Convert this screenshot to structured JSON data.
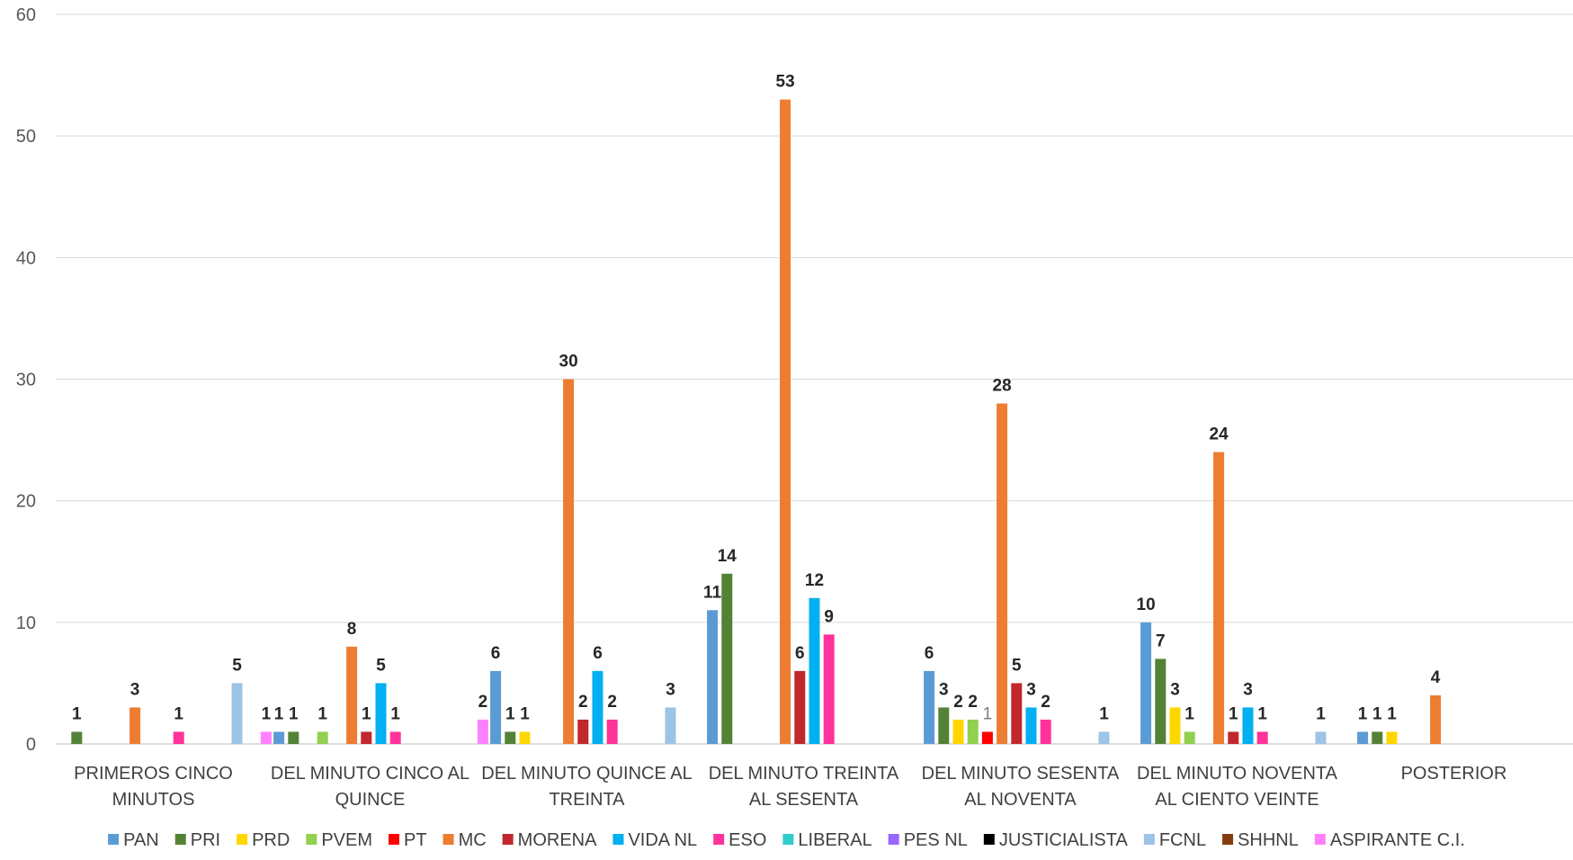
{
  "chart_data": {
    "type": "bar",
    "title": "",
    "xlabel": "",
    "ylabel": "",
    "ylim": [
      0,
      60
    ],
    "yticks": [
      "0",
      "10",
      "20",
      "30",
      "40",
      "50",
      "60"
    ],
    "grid": true,
    "legend_position": "bottom",
    "categories": [
      [
        "PRIMEROS CINCO",
        "MINUTOS"
      ],
      [
        "DEL MINUTO CINCO AL",
        "QUINCE"
      ],
      [
        "DEL MINUTO QUINCE AL",
        "TREINTA"
      ],
      [
        "DEL MINUTO TREINTA",
        "AL SESENTA"
      ],
      [
        "DEL MINUTO SESENTA",
        "AL NOVENTA"
      ],
      [
        "DEL MINUTO NOVENTA",
        "AL CIENTO VEINTE"
      ],
      [
        "POSTERIOR"
      ]
    ],
    "series": [
      {
        "name": "PAN",
        "color": "#5b9bd5",
        "values": [
          null,
          1,
          6,
          11,
          6,
          10,
          1
        ]
      },
      {
        "name": "PRI",
        "color": "#548235",
        "values": [
          1,
          1,
          1,
          14,
          3,
          7,
          1
        ]
      },
      {
        "name": "PRD",
        "color": "#ffd700",
        "values": [
          null,
          null,
          1,
          null,
          2,
          3,
          1
        ]
      },
      {
        "name": "PVEM",
        "color": "#92d050",
        "values": [
          null,
          1,
          null,
          null,
          2,
          1,
          null
        ]
      },
      {
        "name": "PT",
        "color": "#ff0000",
        "values": [
          null,
          null,
          null,
          null,
          1,
          null,
          null
        ]
      },
      {
        "name": "MC",
        "color": "#ed7d31",
        "values": [
          3,
          8,
          30,
          53,
          28,
          24,
          4
        ]
      },
      {
        "name": "MORENA",
        "color": "#c0282d",
        "values": [
          null,
          1,
          2,
          6,
          5,
          1,
          null
        ]
      },
      {
        "name": "VIDA NL",
        "color": "#00b0f0",
        "values": [
          null,
          5,
          6,
          12,
          3,
          3,
          null
        ]
      },
      {
        "name": "ESO",
        "color": "#ff3399",
        "values": [
          1,
          1,
          2,
          9,
          2,
          1,
          null
        ]
      },
      {
        "name": "LIBERAL",
        "color": "#33cccc",
        "values": [
          null,
          null,
          null,
          null,
          null,
          null,
          null
        ]
      },
      {
        "name": "PES NL",
        "color": "#9966ff",
        "values": [
          null,
          null,
          null,
          null,
          null,
          null,
          null
        ]
      },
      {
        "name": "JUSTICIALISTA",
        "color": "#000000",
        "values": [
          null,
          null,
          null,
          null,
          null,
          null,
          null
        ]
      },
      {
        "name": "FCNL",
        "color": "#9dc3e6",
        "values": [
          5,
          null,
          3,
          null,
          1,
          1,
          null
        ]
      },
      {
        "name": "SHHNL",
        "color": "#843c0c",
        "values": [
          null,
          null,
          null,
          null,
          null,
          null,
          null
        ]
      },
      {
        "name": "ASPIRANTE C.I.",
        "color": "#ff80ff",
        "values": [
          1,
          2,
          null,
          null,
          null,
          null,
          null
        ]
      }
    ]
  }
}
